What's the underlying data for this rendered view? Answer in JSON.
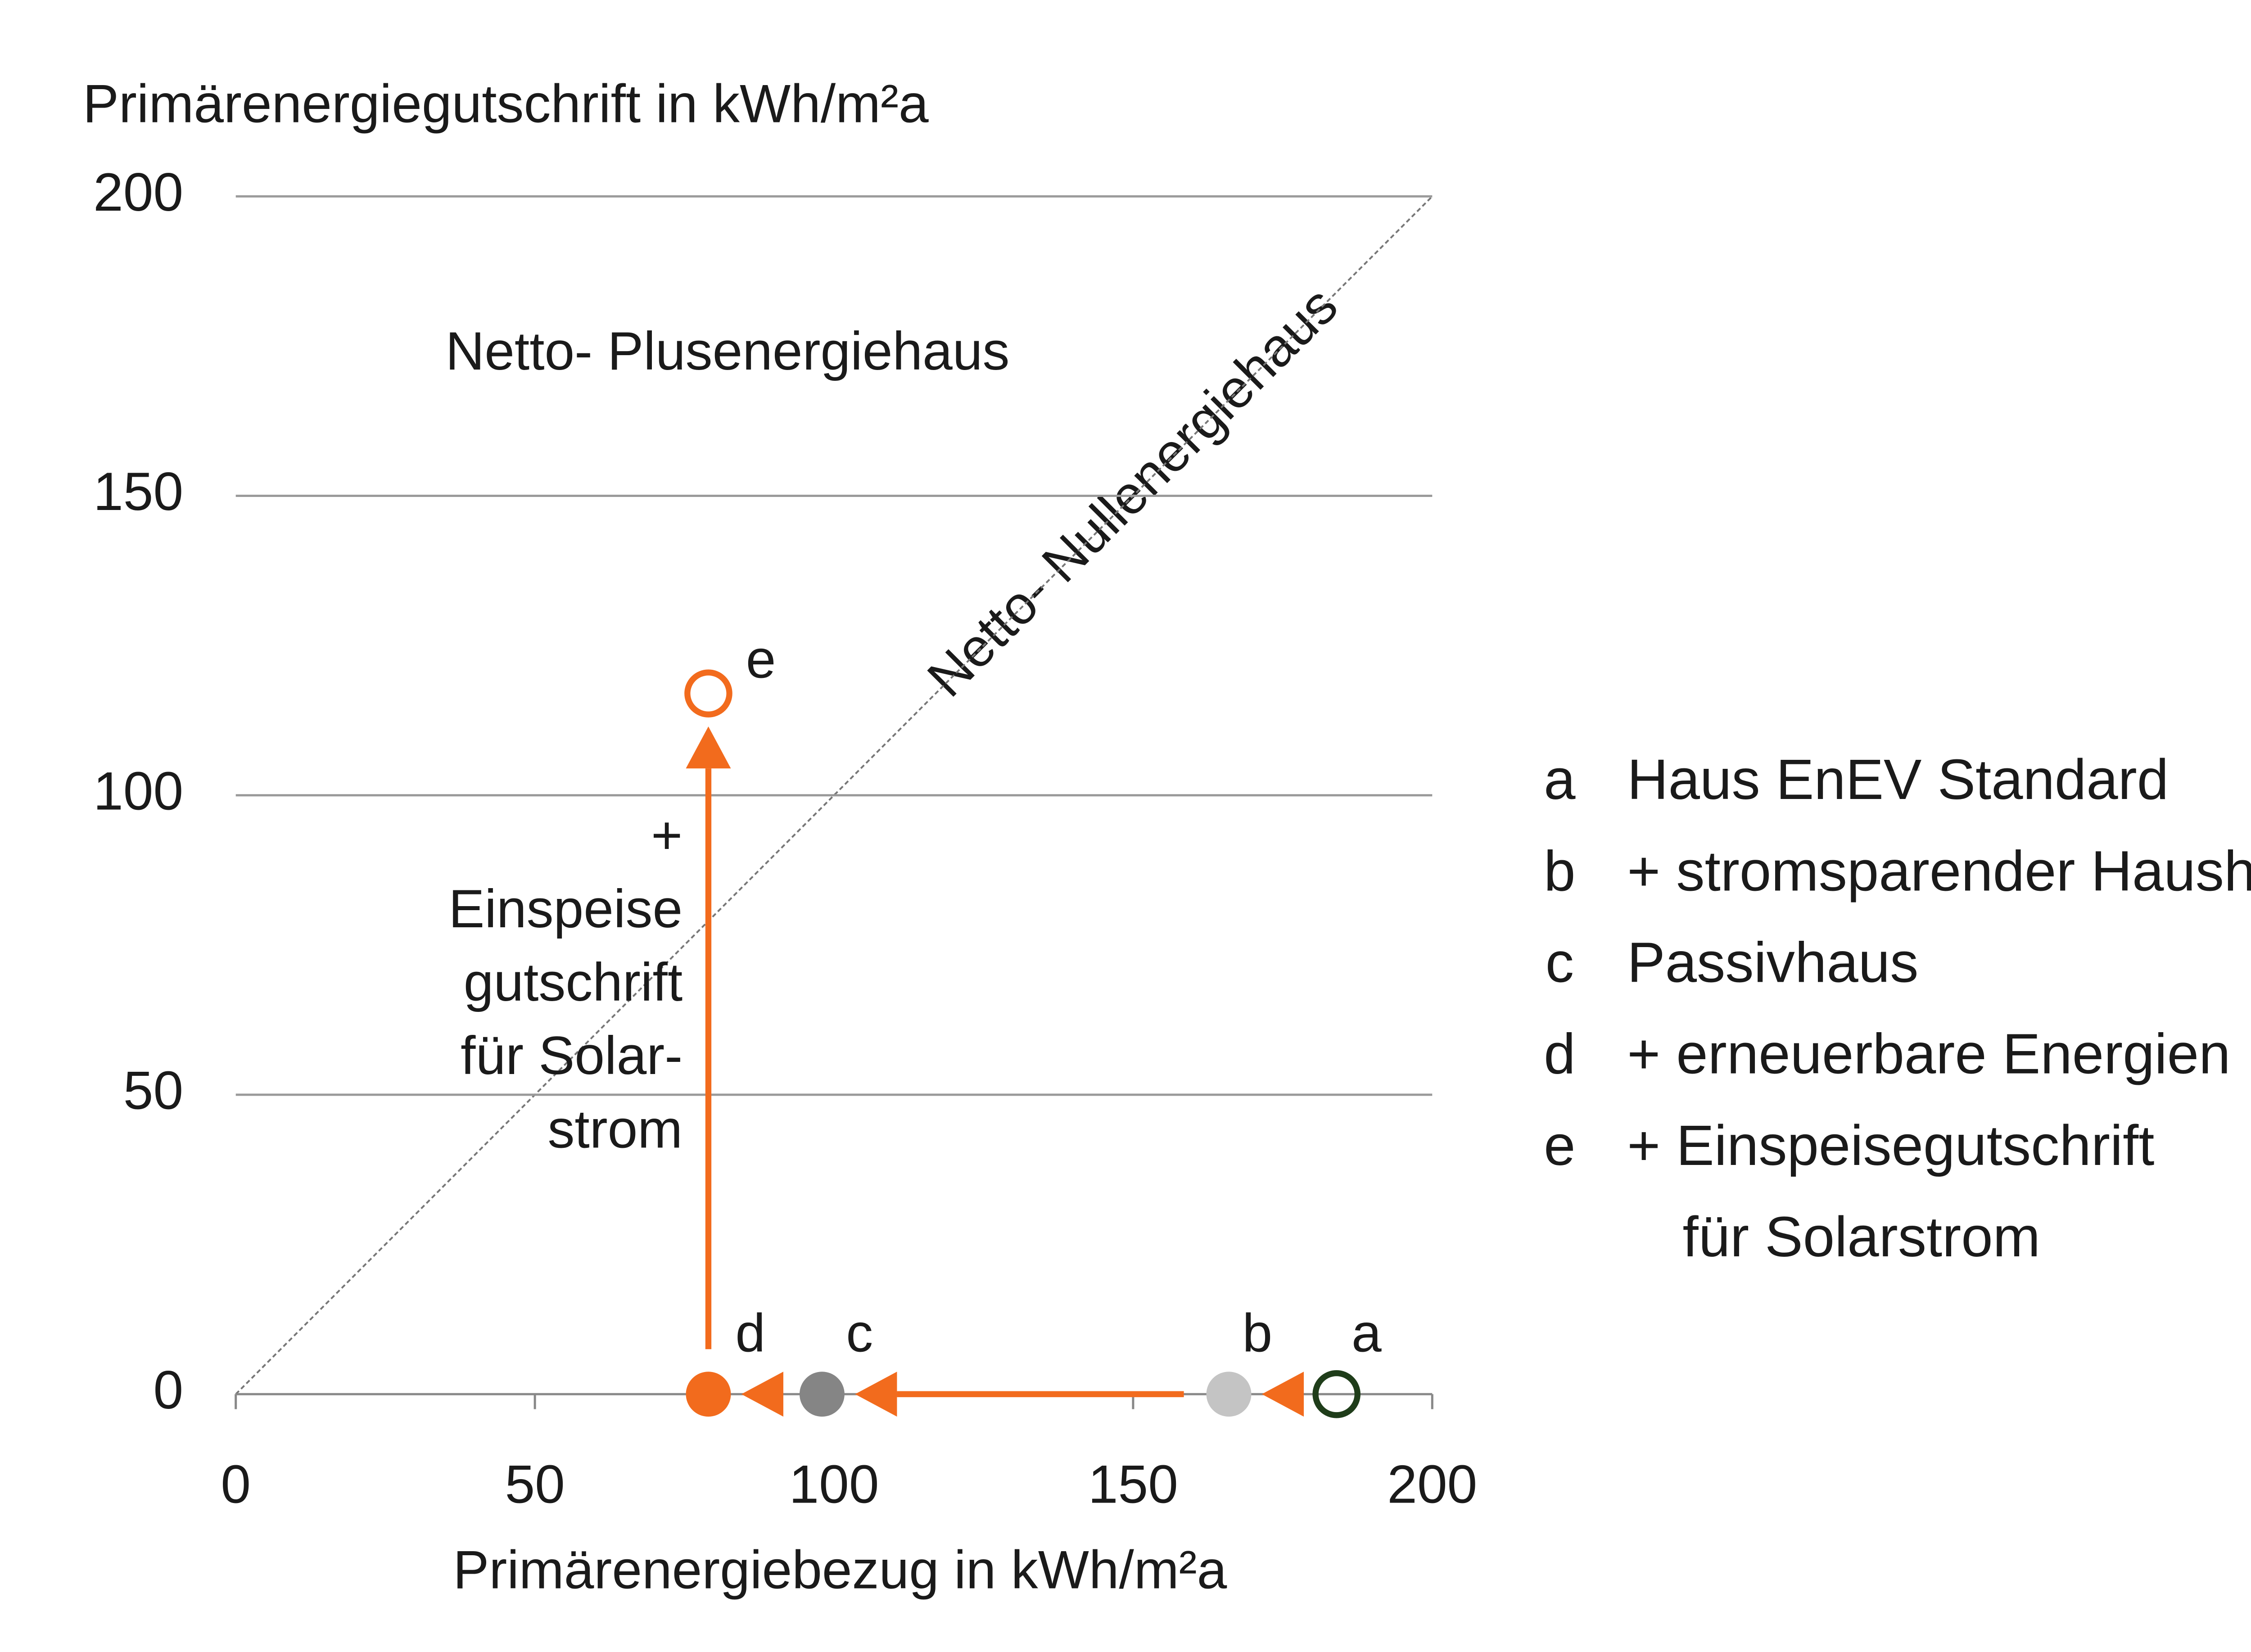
{
  "chart_data": {
    "type": "scatter",
    "y_label": "Primärenergiegutschrift in kWh/m²a",
    "x_label": "Primärenergiebezug in kWh/m²a",
    "region_label": "Netto- Plusenergiehaus",
    "diagonal_label": "Netto- Nullenergiehaus",
    "arrow_label": [
      "+",
      "Einspeise",
      "gutschrift",
      "für Solar-",
      "strom"
    ],
    "xlim": [
      0,
      200
    ],
    "ylim": [
      0,
      200
    ],
    "xticks": [
      0,
      50,
      100,
      150,
      200
    ],
    "yticks": [
      0,
      50,
      100,
      150,
      200
    ],
    "grid": true,
    "arrow_color": "#f26b1d",
    "series": [
      {
        "name": "a",
        "x": [
          184
        ],
        "values": [
          0
        ],
        "color": "#1f3d1a",
        "filled": false
      },
      {
        "name": "b",
        "x": [
          166
        ],
        "values": [
          0
        ],
        "color": "#c4c4c4",
        "filled": true
      },
      {
        "name": "c",
        "x": [
          98
        ],
        "values": [
          0
        ],
        "color": "#858585",
        "filled": true
      },
      {
        "name": "d",
        "x": [
          79
        ],
        "values": [
          0
        ],
        "color": "#f26b1d",
        "filled": true
      },
      {
        "name": "e",
        "x": [
          79
        ],
        "values": [
          117
        ],
        "color": "#f26b1d",
        "filled": false
      }
    ],
    "legend": [
      {
        "key": "a",
        "text": [
          "Haus EnEV Standard"
        ]
      },
      {
        "key": "b",
        "text": [
          "+ stromsparender Haushalt"
        ]
      },
      {
        "key": "c",
        "text": [
          "Passivhaus"
        ]
      },
      {
        "key": "d",
        "text": [
          "+ erneuerbare Energien"
        ]
      },
      {
        "key": "e",
        "text": [
          "+ Einspeisegutschrift",
          "für Solarstrom"
        ]
      }
    ]
  }
}
